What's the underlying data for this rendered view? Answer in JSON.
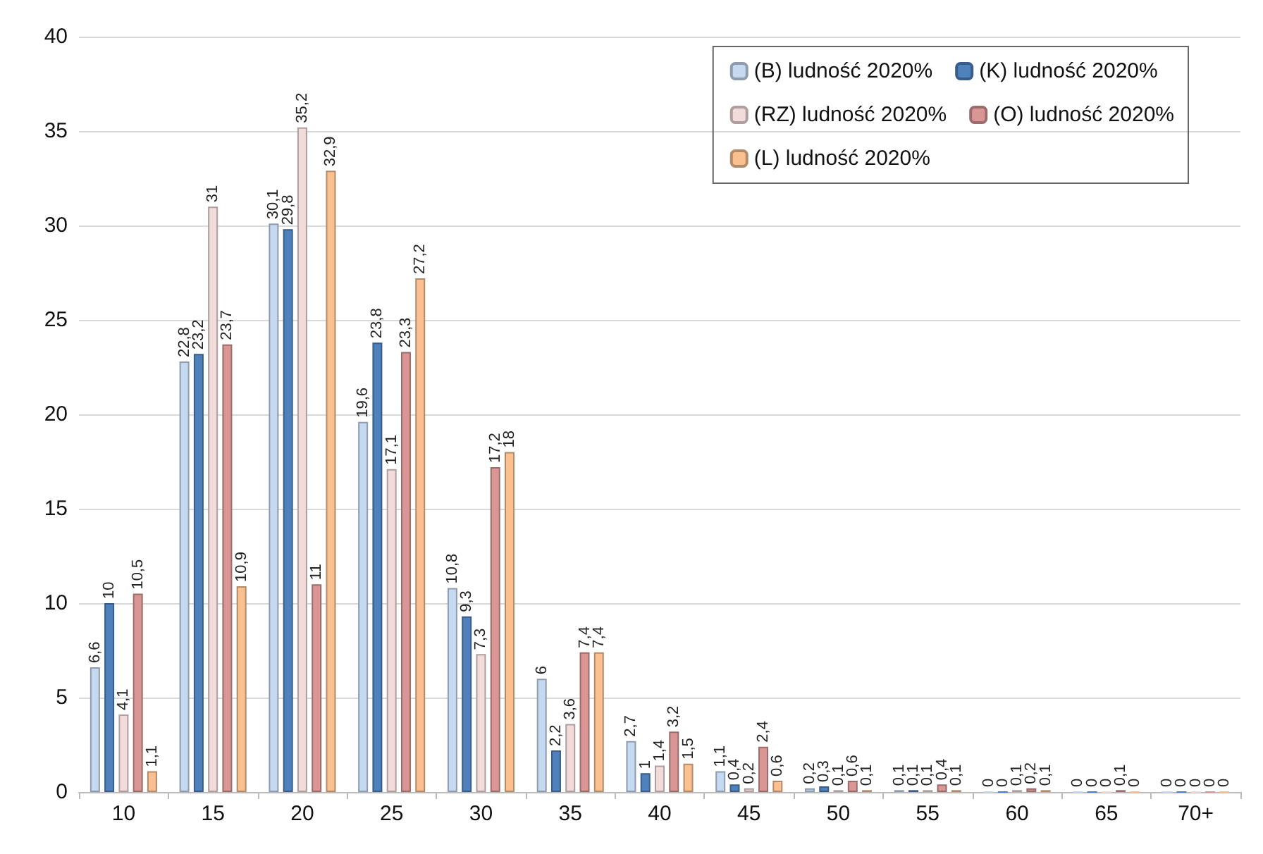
{
  "chart_data": {
    "type": "bar",
    "categories": [
      "10",
      "15",
      "20",
      "25",
      "30",
      "35",
      "40",
      "45",
      "50",
      "55",
      "60",
      "65",
      "70+"
    ],
    "series": [
      {
        "name": "(B) ludność 2020%",
        "color": "#c5d9f1",
        "values": [
          6.6,
          22.8,
          30.1,
          19.6,
          10.8,
          6,
          2.7,
          1.1,
          0.2,
          0.1,
          0,
          0,
          0
        ],
        "value_labels": [
          "6,6",
          "22,8",
          "30,1",
          "19,6",
          "10,8",
          "6",
          "2,7",
          "1,1",
          "0,2",
          "0,1",
          "0",
          "0",
          "0"
        ]
      },
      {
        "name": "(K) ludność 2020%",
        "color": "#4f81bd",
        "values": [
          10,
          23.2,
          29.8,
          23.8,
          9.3,
          2.2,
          1,
          0.4,
          0.3,
          0.1,
          0,
          0,
          0
        ],
        "value_labels": [
          "10",
          "23,2",
          "29,8",
          "23,8",
          "9,3",
          "2,2",
          "1",
          "0,4",
          "0,3",
          "0,1",
          "0",
          "0",
          "0"
        ]
      },
      {
        "name": "(RZ) ludność 2020%",
        "color": "#f2dcdb",
        "values": [
          4.1,
          31,
          35.2,
          17.1,
          7.3,
          3.6,
          1.4,
          0.2,
          0.1,
          0.1,
          0.1,
          0,
          0
        ],
        "value_labels": [
          "4,1",
          "31",
          "35,2",
          "17,1",
          "7,3",
          "3,6",
          "1,4",
          "0,2",
          "0,1",
          "0,1",
          "0,1",
          "0",
          "0"
        ]
      },
      {
        "name": "(O) ludność 2020%",
        "color": "#d99694",
        "values": [
          10.5,
          23.7,
          11,
          23.3,
          17.2,
          7.4,
          3.2,
          2.4,
          0.6,
          0.4,
          0.2,
          0.1,
          0
        ],
        "value_labels": [
          "10,5",
          "23,7",
          "11",
          "23,3",
          "17,2",
          "7,4",
          "3,2",
          "2,4",
          "0,6",
          "0,4",
          "0,2",
          "0,1",
          "0"
        ]
      },
      {
        "name": "(L) ludność 2020%",
        "color": "#fac090",
        "values": [
          1.1,
          10.9,
          32.9,
          27.2,
          18,
          7.4,
          1.5,
          0.6,
          0.1,
          0.1,
          0.1,
          0,
          0
        ],
        "value_labels": [
          "1,1",
          "10,9",
          "32,9",
          "27,2",
          "18",
          "7,4",
          "1,5",
          "0,6",
          "0,1",
          "0,1",
          "0,1",
          "0",
          "0"
        ]
      }
    ],
    "ylim": [
      0,
      40
    ],
    "yticks": [
      0,
      5,
      10,
      15,
      20,
      25,
      30,
      35,
      40
    ],
    "grid": "y",
    "legend": "top right"
  }
}
